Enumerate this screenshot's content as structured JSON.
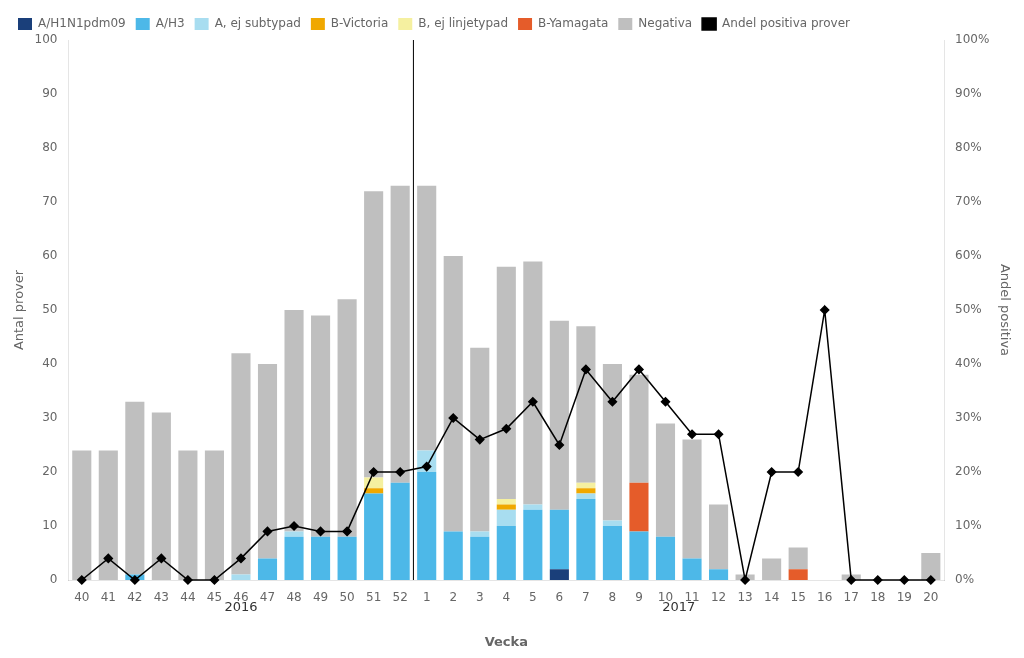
{
  "chart_data": {
    "type": "bar",
    "stacked": true,
    "grid": false,
    "legend": "upper left",
    "xlabel": "Vecka",
    "ylabel": "Antal prover",
    "y2label": "Andel positiva",
    "categories": [
      "40",
      "41",
      "42",
      "43",
      "44",
      "45",
      "46",
      "47",
      "48",
      "49",
      "50",
      "51",
      "52",
      "1",
      "2",
      "3",
      "4",
      "5",
      "6",
      "7",
      "8",
      "9",
      "10",
      "11",
      "12",
      "13",
      "14",
      "15",
      "16",
      "17",
      "18",
      "19",
      "20"
    ],
    "series": [
      {
        "name": "A/H1N1pdm09",
        "color": "#1a3f7a",
        "values": [
          0,
          0,
          0,
          0,
          0,
          0,
          0,
          0,
          0,
          0,
          0,
          0,
          0,
          0,
          0,
          0,
          0,
          0,
          2,
          0,
          0,
          0,
          0,
          0,
          0,
          0,
          0,
          0,
          0,
          0,
          0,
          0,
          0
        ]
      },
      {
        "name": "A/H3",
        "color": "#4db8e8",
        "values": [
          0,
          0,
          1,
          0,
          0,
          0,
          0,
          4,
          8,
          8,
          8,
          16,
          18,
          20,
          9,
          8,
          10,
          13,
          11,
          15,
          10,
          9,
          8,
          4,
          2,
          0,
          0,
          0,
          0,
          0,
          0,
          0,
          0
        ]
      },
      {
        "name": "A, ej subtypad",
        "color": "#a8ddf0",
        "values": [
          0,
          0,
          0,
          0,
          0,
          0,
          1,
          0,
          1,
          0,
          0,
          0,
          0,
          4,
          0,
          1,
          3,
          1,
          0,
          1,
          1,
          0,
          0,
          0,
          0,
          0,
          0,
          0,
          0,
          0,
          0,
          0,
          0
        ]
      },
      {
        "name": "B-Victoria",
        "color": "#f0a800",
        "values": [
          0,
          0,
          0,
          0,
          0,
          0,
          0,
          0,
          0,
          0,
          0,
          1,
          0,
          0,
          0,
          0,
          1,
          0,
          0,
          1,
          0,
          0,
          0,
          0,
          0,
          0,
          0,
          0,
          0,
          0,
          0,
          0,
          0
        ]
      },
      {
        "name": "B, ej linjetypad",
        "color": "#f5f0a0",
        "values": [
          0,
          0,
          0,
          0,
          0,
          0,
          0,
          0,
          0,
          0,
          0,
          2,
          0,
          0,
          0,
          0,
          1,
          0,
          0,
          1,
          0,
          0,
          0,
          0,
          0,
          0,
          0,
          0,
          0,
          0,
          0,
          0,
          0
        ]
      },
      {
        "name": "B-Yamagata",
        "color": "#e55c2a",
        "values": [
          0,
          0,
          0,
          0,
          0,
          0,
          0,
          0,
          0,
          0,
          0,
          0,
          0,
          0,
          0,
          0,
          0,
          0,
          0,
          0,
          0,
          9,
          0,
          0,
          0,
          0,
          0,
          2,
          0,
          0,
          0,
          0,
          0
        ]
      },
      {
        "name": "Negativa",
        "color": "#bfbfbf",
        "values": [
          24,
          24,
          32,
          31,
          24,
          24,
          41,
          36,
          41,
          41,
          44,
          53,
          55,
          49,
          51,
          34,
          43,
          45,
          35,
          29,
          29,
          20,
          21,
          22,
          12,
          1,
          4,
          4,
          0,
          1,
          0,
          0,
          5
        ]
      },
      {
        "name": "Andel positiva prover",
        "type": "line",
        "axis": "y2",
        "color": "#000000",
        "marker": "diamond",
        "line_style": "solid",
        "values": [
          0.0,
          0.04,
          0.0,
          0.04,
          0.0,
          0.0,
          0.04,
          0.09,
          0.1,
          0.09,
          0.09,
          0.2,
          0.2,
          0.21,
          0.3,
          0.26,
          0.28,
          0.33,
          0.25,
          0.39,
          0.33,
          0.39,
          0.33,
          0.27,
          0.27,
          0.0,
          0.2,
          0.2,
          0.5,
          0.0,
          0.0,
          0.0,
          0.0
        ]
      }
    ],
    "ylim": [
      0,
      100
    ],
    "yticks": [
      0,
      10,
      20,
      30,
      40,
      50,
      60,
      70,
      80,
      90,
      100
    ],
    "y2lim": [
      0,
      1.0
    ],
    "y2ticks": [
      {
        "value": 0.0,
        "label": "0%"
      },
      {
        "value": 0.1,
        "label": "10%"
      },
      {
        "value": 0.2,
        "label": "20%"
      },
      {
        "value": 0.3,
        "label": "30%"
      },
      {
        "value": 0.4,
        "label": "40%"
      },
      {
        "value": 0.5,
        "label": "50%"
      },
      {
        "value": 0.6,
        "label": "60%"
      },
      {
        "value": 0.7,
        "label": "70%"
      },
      {
        "value": 0.8,
        "label": "80%"
      },
      {
        "value": 0.9,
        "label": "90%"
      },
      {
        "value": 1.0,
        "label": "100%"
      }
    ],
    "annotations": [
      {
        "text": "2016",
        "from": "40",
        "to": "52"
      },
      {
        "text": "2017",
        "from": "1",
        "to": "20"
      }
    ]
  }
}
